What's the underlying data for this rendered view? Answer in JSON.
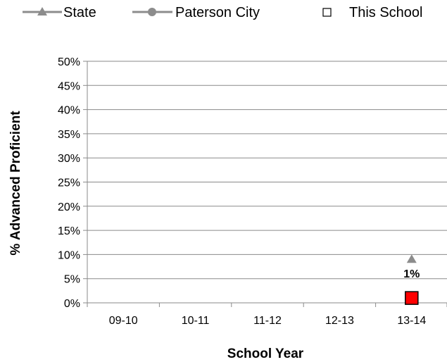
{
  "chart_data": {
    "type": "line",
    "xlabel": "School Year",
    "ylabel": "% Advanced Proficient",
    "ylim": [
      0,
      50
    ],
    "y_ticks": [
      "0%",
      "5%",
      "10%",
      "15%",
      "20%",
      "25%",
      "30%",
      "35%",
      "40%",
      "45%",
      "50%"
    ],
    "categories": [
      "09-10",
      "10-11",
      "11-12",
      "12-13",
      "13-14"
    ],
    "grid": "horizontal",
    "legend_position": "top",
    "series": [
      {
        "name": "State",
        "marker": "triangle",
        "color": "#8c8c8c",
        "values": [
          null,
          null,
          null,
          null,
          9
        ]
      },
      {
        "name": "Paterson City",
        "marker": "circle",
        "color": "#8c8c8c",
        "values": [
          null,
          null,
          null,
          null,
          null
        ]
      },
      {
        "name": "This School",
        "marker": "square",
        "color": "#ff0000",
        "values": [
          null,
          null,
          null,
          null,
          1
        ],
        "data_labels": [
          null,
          null,
          null,
          null,
          "1%"
        ]
      }
    ]
  }
}
